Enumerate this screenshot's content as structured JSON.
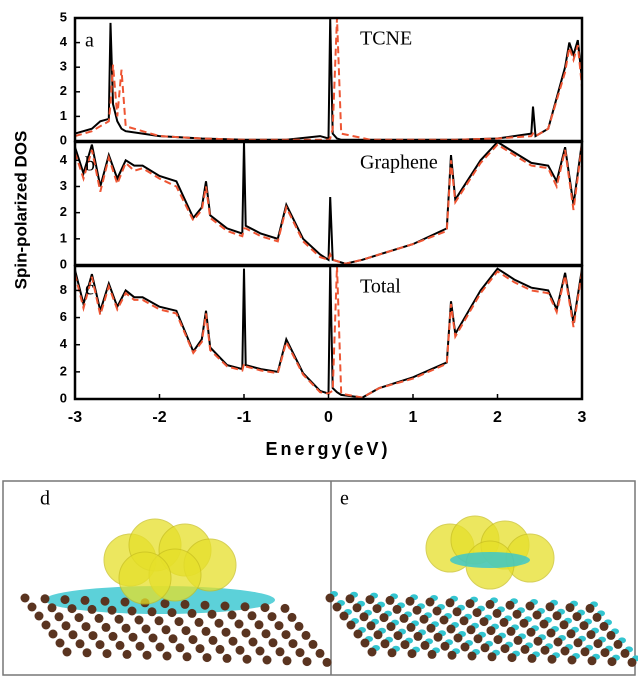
{
  "chart_data": [
    {
      "type": "line",
      "label": "a",
      "annotation": "TCNE",
      "x": [
        -3,
        -2.8,
        -2.7,
        -2.6,
        -2.58,
        -2.55,
        -2.5,
        -2.45,
        -2.4,
        -2.2,
        -2,
        -1.5,
        -1,
        -0.5,
        -0.1,
        0,
        0.02,
        0.05,
        0.1,
        0.15,
        0.5,
        1,
        1.5,
        2,
        2.4,
        2.42,
        2.45,
        2.6,
        2.8,
        2.85,
        2.9,
        2.95,
        3
      ],
      "series": [
        {
          "color": "#000000",
          "dashed": false,
          "values": [
            0.3,
            0.5,
            0.8,
            0.9,
            4.8,
            1.5,
            0.8,
            0.5,
            0.4,
            0.3,
            0.2,
            0.1,
            0.05,
            0.05,
            0.2,
            0.1,
            5,
            0.3,
            0.1,
            0.05,
            0.05,
            0.05,
            0.05,
            0.1,
            0.3,
            1.4,
            0.2,
            0.5,
            3,
            4,
            3.5,
            4.1,
            2.5
          ]
        },
        {
          "color": "#ee5533",
          "dashed": true,
          "values": [
            0.2,
            0.4,
            0.6,
            0.8,
            1.5,
            3.1,
            1.0,
            2.9,
            0.6,
            0.4,
            0.2,
            0.1,
            0.05,
            0.05,
            0.05,
            0.05,
            0.1,
            0.5,
            5,
            0.3,
            0.05,
            0.05,
            0.05,
            0.1,
            0.2,
            0.3,
            0.2,
            0.5,
            2.8,
            3.8,
            3.3,
            3.9,
            2.2
          ]
        }
      ],
      "xlim": [
        -3,
        3
      ],
      "ylim": [
        0,
        5
      ],
      "yticks": [
        0,
        1,
        2,
        3,
        4,
        5
      ]
    },
    {
      "type": "line",
      "label": "b",
      "annotation": "Graphene",
      "x": [
        -3,
        -2.9,
        -2.8,
        -2.7,
        -2.6,
        -2.5,
        -2.4,
        -2.3,
        -2.2,
        -2,
        -1.8,
        -1.6,
        -1.5,
        -1.45,
        -1.4,
        -1.2,
        -1.02,
        -1.0,
        -0.98,
        -0.8,
        -0.6,
        -0.5,
        -0.3,
        -0.1,
        0,
        0.02,
        0.05,
        0.2,
        0.4,
        0.6,
        1,
        1.4,
        1.45,
        1.5,
        1.8,
        2,
        2.2,
        2.4,
        2.6,
        2.7,
        2.8,
        2.9,
        3
      ],
      "series": [
        {
          "color": "#000000",
          "dashed": false,
          "values": [
            4.5,
            3.5,
            4.6,
            3,
            4.2,
            3.3,
            4.0,
            3.8,
            3.8,
            3.4,
            3.2,
            1.8,
            2.2,
            3.2,
            1.9,
            1.4,
            1.2,
            4.7,
            1.5,
            1.2,
            1.0,
            2.3,
            1.0,
            0.4,
            0.2,
            2.6,
            0.2,
            0.05,
            0.2,
            0.4,
            0.8,
            1.4,
            4.2,
            2.5,
            4.0,
            4.7,
            4.3,
            3.9,
            3.8,
            3.2,
            4.5,
            2.3,
            4.7
          ]
        },
        {
          "color": "#ee5533",
          "dashed": true,
          "values": [
            4.3,
            3.3,
            4.4,
            2.8,
            4.1,
            3.1,
            3.9,
            3.6,
            3.7,
            3.3,
            3.0,
            1.7,
            2.1,
            3.0,
            1.8,
            1.3,
            1.1,
            1.4,
            1.4,
            1.1,
            0.9,
            2.2,
            0.9,
            0.3,
            0.2,
            0.4,
            0.2,
            0.05,
            0.2,
            0.4,
            0.8,
            1.3,
            4.0,
            2.4,
            3.9,
            4.6,
            4.2,
            3.8,
            3.7,
            3.0,
            4.4,
            2.1,
            4.6
          ]
        }
      ],
      "xlim": [
        -3,
        3
      ],
      "ylim": [
        0,
        4.7
      ],
      "yticks": [
        0,
        1,
        2,
        3,
        4
      ]
    },
    {
      "type": "line",
      "label": "c",
      "annotation": "Total",
      "x": [
        -3,
        -2.9,
        -2.8,
        -2.7,
        -2.6,
        -2.5,
        -2.4,
        -2.3,
        -2.2,
        -2,
        -1.8,
        -1.6,
        -1.5,
        -1.45,
        -1.4,
        -1.2,
        -1.02,
        -1.0,
        -0.98,
        -0.8,
        -0.6,
        -0.5,
        -0.3,
        -0.1,
        0,
        0.02,
        0.05,
        0.1,
        0.15,
        0.4,
        0.6,
        1,
        1.4,
        1.45,
        1.5,
        1.8,
        2,
        2.2,
        2.4,
        2.6,
        2.7,
        2.8,
        2.9,
        3
      ],
      "series": [
        {
          "color": "#000000",
          "dashed": false,
          "values": [
            9.5,
            7,
            9.2,
            6.5,
            8.5,
            6.8,
            8,
            7.5,
            7.5,
            6.8,
            6.5,
            3.5,
            4.4,
            6.5,
            3.8,
            2.5,
            2.2,
            9.6,
            2.5,
            2.2,
            2.0,
            4.4,
            1.9,
            0.6,
            0.4,
            9.8,
            0.8,
            0.5,
            0.3,
            0.1,
            0.8,
            1.6,
            2.7,
            7.2,
            4.8,
            8,
            9.6,
            8.8,
            8.2,
            8,
            6.6,
            9.3,
            5.6,
            9.6
          ]
        },
        {
          "color": "#ee5533",
          "dashed": true,
          "values": [
            9.2,
            6.7,
            9.0,
            6.2,
            8.3,
            6.6,
            7.8,
            7.3,
            7.3,
            6.6,
            6.3,
            3.4,
            4.2,
            6.3,
            3.6,
            2.4,
            2.1,
            2.6,
            2.4,
            2.1,
            1.9,
            4.2,
            1.8,
            0.5,
            0.4,
            0.5,
            0.6,
            9.8,
            0.4,
            0.1,
            0.8,
            1.5,
            2.6,
            7.0,
            4.6,
            7.8,
            9.4,
            8.6,
            8.0,
            7.8,
            6.4,
            9.1,
            5.3,
            9.4
          ]
        }
      ],
      "xlim": [
        -3,
        3
      ],
      "ylim": [
        0,
        9.8
      ],
      "yticks": [
        0,
        2,
        4,
        6,
        8
      ],
      "xticks": [
        -3,
        -2,
        -1,
        0,
        1,
        2,
        3
      ]
    }
  ],
  "xlabel": "Energy(eV)",
  "ylabel": "Spin-polarized DOS",
  "images": {
    "labels": [
      "d",
      "e"
    ]
  }
}
